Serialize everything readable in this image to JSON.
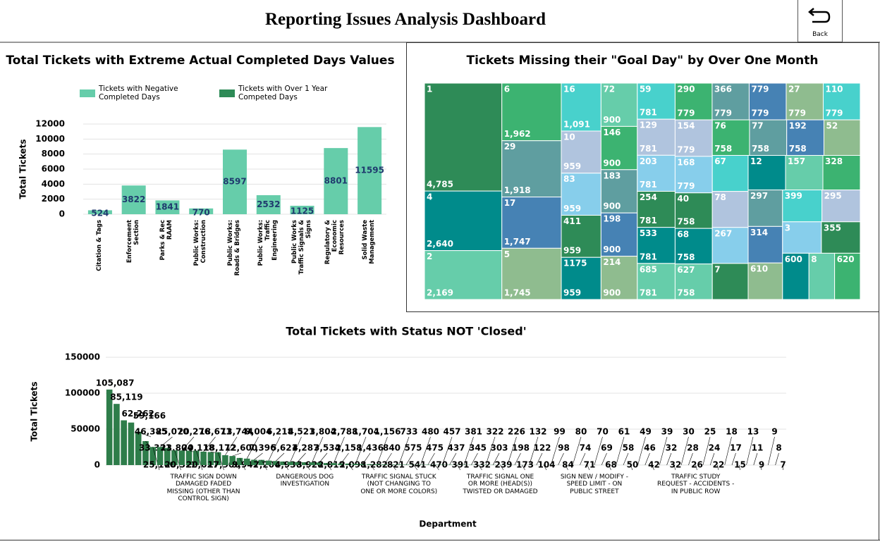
{
  "header": {
    "title": "Reporting Issues Analysis Dashboard",
    "back_button": "Back"
  },
  "chart_data": [
    {
      "type": "bar",
      "title": "Total Tickets with Extreme Actual Completed Days Values",
      "y_label": "Total Tickets",
      "categories": [
        "Citation & Tags",
        "Enforcement Section",
        "Parks & Rec RAAM",
        "Public Works: Construction",
        "Public Works: Roads & Bridges",
        "Public Works: Traffic Engineering",
        "Public Works Traffic Signals & Signs",
        "Regulatory & Economic Resources",
        "Solid Waste Management"
      ],
      "series": [
        {
          "name": "Tickets with Negative Completed Days",
          "color": "#66cdaa",
          "values": [
            524,
            3822,
            1841,
            770,
            8597,
            2532,
            1125,
            8801,
            11595
          ]
        },
        {
          "name": "Tickets with Over 1 Year Competed Days",
          "color": "#2e8b57",
          "values": [
            null,
            null,
            null,
            null,
            null,
            null,
            null,
            null,
            null
          ]
        }
      ],
      "ylim": [
        0,
        12000
      ],
      "yticks": [
        0,
        2000,
        4000,
        6000,
        8000,
        10000,
        12000
      ],
      "grid": true,
      "value_label_color": "#1f3a6e"
    },
    {
      "type": "treemap",
      "title": "Tickets Missing their \"Goal Day\" by Over One Month",
      "labels": [
        "1",
        "4",
        "2",
        "6",
        "29",
        "17",
        "5",
        "16",
        "10",
        "83",
        "411",
        "1175",
        "72",
        "146",
        "183",
        "198",
        "214",
        "59",
        "129",
        "203",
        "254",
        "533",
        "685",
        "290",
        "366",
        "779",
        "27",
        "110",
        "154",
        "168",
        "40",
        "68",
        "627",
        "76",
        "77",
        "192",
        "52",
        "67",
        "78",
        "267",
        "7",
        "12",
        "157",
        "328",
        "297",
        "314",
        "610",
        "399",
        "295",
        "3",
        "355",
        "600",
        "8",
        "620"
      ],
      "values": [
        4785,
        2640,
        2169,
        1962,
        1918,
        1747,
        1745,
        1091,
        959,
        959,
        959,
        959,
        900,
        900,
        900,
        900,
        900,
        781,
        781,
        781,
        781,
        781,
        781,
        779,
        779,
        779,
        779,
        779,
        779,
        779,
        758,
        758,
        758,
        758,
        758,
        758,
        740,
        740,
        740,
        740,
        740,
        740,
        740,
        740,
        720,
        720,
        720,
        720,
        700,
        700,
        700,
        700,
        680,
        680
      ],
      "value_labels": [
        "4,785",
        "2,640",
        "2,169",
        "1,962",
        "1,918",
        "1,747",
        "1,745",
        "1,091",
        "959",
        "959",
        "959",
        "959",
        "900",
        "900",
        "900",
        "900",
        "900",
        "781",
        "781",
        "781",
        "781",
        "781",
        "781",
        "779",
        "779",
        "779",
        "779",
        "779",
        "779",
        "779",
        "758",
        "758",
        "758",
        "758",
        "758",
        "758",
        null,
        null,
        null,
        null,
        null,
        null,
        null,
        null,
        null,
        null,
        null,
        null,
        null,
        null,
        null,
        null,
        null,
        null
      ],
      "colors": [
        "#2e8b57",
        "#008b8b",
        "#66cdaa",
        "#3cb371",
        "#5f9ea0",
        "#4682b4",
        "#8fbc8f",
        "#48d1cc",
        "#b0c4de",
        "#87ceeb"
      ]
    },
    {
      "type": "bar",
      "title": "Total Tickets with Status NOT 'Closed'",
      "x_label": "Department",
      "y_label": "Total Tickets",
      "color": "#2e7d4a",
      "categories": [
        null,
        null,
        null,
        null,
        null,
        null,
        null,
        null,
        null,
        null,
        null,
        null,
        null,
        "TRAFFIC SIGN DOWN DAMAGED FADED MISSING (OTHER THAN CONTROL SIGN)",
        null,
        null,
        null,
        null,
        null,
        null,
        null,
        null,
        null,
        null,
        null,
        null,
        null,
        "DANGEROUS DOG INVESTIGATION",
        null,
        null,
        null,
        null,
        null,
        null,
        null,
        null,
        null,
        null,
        null,
        null,
        "TRAFFIC SIGNAL STUCK (NOT CHANGING TO ONE OR MORE COLORS)",
        null,
        null,
        null,
        null,
        null,
        null,
        null,
        null,
        null,
        null,
        null,
        null,
        null,
        "TRAFFIC SIGNAL ONE OR MORE (HEAD(S)) TWISTED OR DAMAGED",
        null,
        null,
        null,
        null,
        null,
        null,
        null,
        null,
        null,
        null,
        null,
        null,
        "SIGN NEW / MODIFY - SPEED LIMIT - ON PUBLIC STREET",
        null,
        null,
        null,
        null,
        null,
        null,
        null,
        null,
        null,
        null,
        null,
        null,
        null,
        "TRAFFIC STUDY REQUEST - ACCIDENTS - IN PUBLIC ROW",
        null,
        null,
        null,
        null,
        null,
        null,
        null,
        null,
        null,
        null,
        null,
        null
      ],
      "values": [
        105087,
        85119,
        62262,
        59166,
        46385,
        33331,
        25160,
        25070,
        23804,
        20522,
        20276,
        20118,
        20027,
        18671,
        18172,
        17906,
        13744,
        12600,
        9942,
        9004,
        7396,
        7206,
        6218,
        5621,
        4936,
        4521,
        4287,
        3928,
        3804,
        3534,
        2819,
        2788,
        2158,
        2098,
        1704,
        1436,
        1282,
        1156,
        840,
        821,
        733,
        575,
        541,
        480,
        475,
        470,
        457,
        437,
        391,
        381,
        345,
        332,
        322,
        303,
        239,
        226,
        198,
        173,
        132,
        122,
        104,
        99,
        98,
        84,
        80,
        74,
        71,
        70,
        69,
        68,
        61,
        58,
        50,
        49,
        46,
        42,
        39,
        32,
        32,
        30,
        28,
        26,
        25,
        24,
        22,
        18,
        17,
        15,
        13,
        11,
        9,
        9,
        8,
        7
      ],
      "value_labels": [
        "105,087",
        "85,119",
        "62,262",
        "59,166",
        "46,385",
        "33,331",
        "25,160",
        "25,070",
        "23,804",
        "20,522",
        "20,276",
        "20,118",
        "20,027",
        "18,671",
        "18,172",
        "17,906",
        "13,744",
        "12,600",
        "9,942",
        "9,004",
        "7,396",
        "7,206",
        "6,218",
        "5,621",
        "4,936",
        "4,521",
        "4,287",
        "3,928",
        "3,804",
        "3,534",
        "2,819",
        "2,788",
        "2,158",
        "2,098",
        "1,704",
        "1,436",
        "1,282",
        "1,156",
        "840",
        "821",
        "733",
        "575",
        "541",
        "480",
        "475",
        "470",
        "457",
        "437",
        "391",
        "381",
        "345",
        "332",
        "322",
        "303",
        "239",
        "226",
        "198",
        "173",
        "132",
        "122",
        "104",
        "99",
        "98",
        "84",
        "80",
        "74",
        "71",
        "70",
        "69",
        "68",
        "61",
        "58",
        "50",
        "49",
        "46",
        "42",
        "39",
        "32",
        "32",
        "30",
        "28",
        "26",
        "25",
        "24",
        "22",
        "18",
        "17",
        "15",
        "13",
        "11",
        "9",
        "9",
        "8",
        "7"
      ],
      "ylim": [
        0,
        150000
      ],
      "yticks": [
        0,
        50000,
        100000,
        150000
      ],
      "grid": true
    }
  ]
}
